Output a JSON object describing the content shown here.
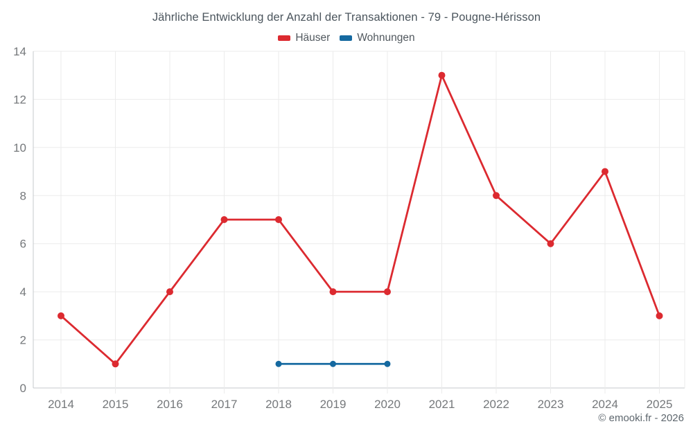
{
  "header": {
    "title": "Jährliche Entwicklung der Anzahl der Transaktionen - 79 - Pougne-Hérisson"
  },
  "footer": {
    "copyright": "© emooki.fr - 2026"
  },
  "colors": {
    "hauser_red": "#dc2a30",
    "wohnungen_blue": "#1569a0",
    "grid": "#ebebeb",
    "axis_line": "#c6cacc",
    "tick_label": "#75787b",
    "title_text": "#4b555d",
    "background": "#ffffff"
  },
  "chart_data": {
    "type": "line",
    "title": "Jährliche Entwicklung der Anzahl der Transaktionen - 79 - Pougne-Hérisson",
    "xlabel": "",
    "ylabel": "",
    "categories": [
      "2014",
      "2015",
      "2016",
      "2017",
      "2018",
      "2019",
      "2020",
      "2021",
      "2022",
      "2023",
      "2024",
      "2025"
    ],
    "series": [
      {
        "name": "Häuser",
        "color": "#dc2a30",
        "values": [
          3,
          1,
          4,
          7,
          7,
          4,
          4,
          13,
          8,
          6,
          9,
          3
        ]
      },
      {
        "name": "Wohnungen",
        "color": "#1569a0",
        "values": [
          null,
          null,
          null,
          null,
          1,
          1,
          1,
          null,
          null,
          null,
          null,
          null
        ]
      }
    ],
    "ylim": [
      0,
      14
    ],
    "ytick_step": 2,
    "yticks": [
      0,
      2,
      4,
      6,
      8,
      10,
      12,
      14
    ],
    "grid": true,
    "legend_position": "top"
  }
}
